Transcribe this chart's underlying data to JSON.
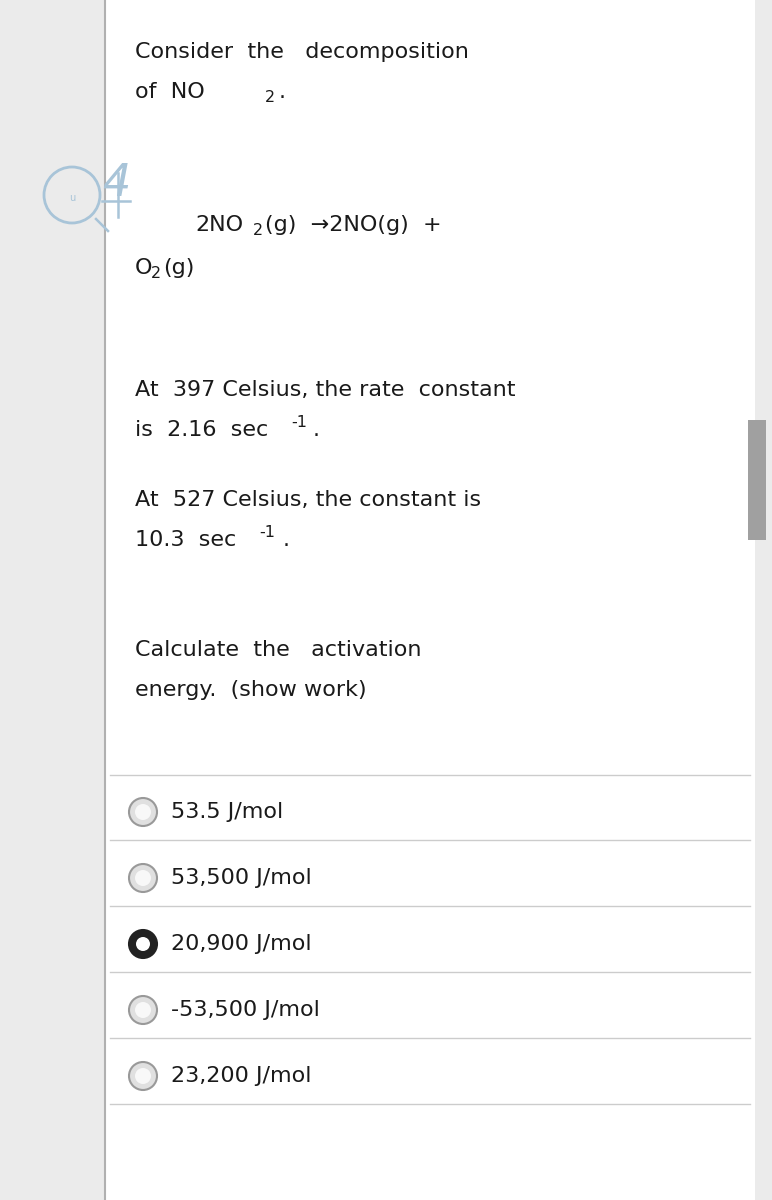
{
  "bg_color": "#ebebeb",
  "content_bg": "#ffffff",
  "text_color": "#1a1a1a",
  "handwriting_color": "#a8c4d8",
  "separator_color": "#cccccc",
  "border_line_color": "#b0b0b0",
  "scrollbar_color": "#a0a0a0",
  "font_size": 16,
  "option_font_size": 16,
  "options": [
    {
      "label": "53.5 J/mol",
      "selected": false
    },
    {
      "label": "53,500 J/mol",
      "selected": false
    },
    {
      "label": "20,900 J/mol",
      "selected": true
    },
    {
      "label": "-53,500 J/mol",
      "selected": false
    },
    {
      "label": "23,200 J/mol",
      "selected": false
    }
  ]
}
